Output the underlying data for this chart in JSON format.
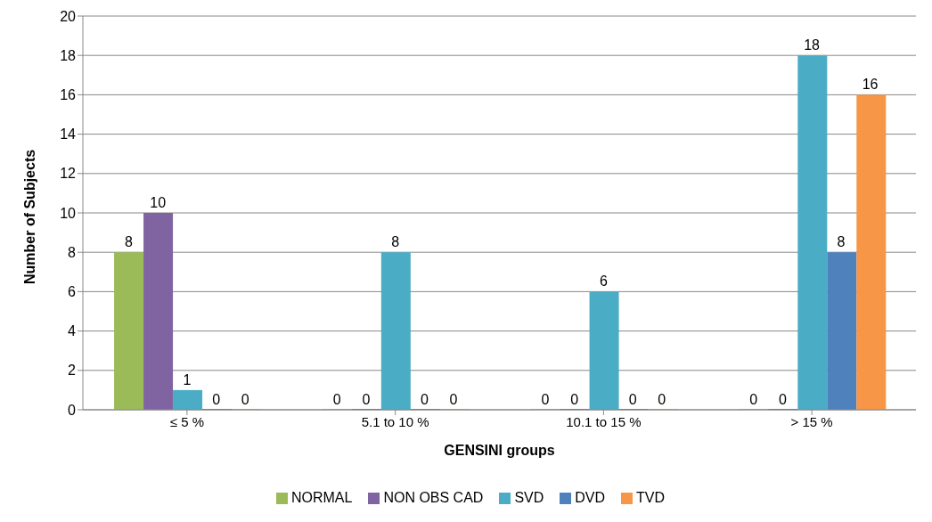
{
  "chart_data": {
    "type": "bar",
    "xlabel": "GENSINI groups",
    "ylabel": "Number of Subjects",
    "categories": [
      "≤ 5 %",
      "5.1 to 10 %",
      "10.1 to 15 %",
      "> 15 %"
    ],
    "series": [
      {
        "name": "NORMAL",
        "color": "#9bbb59",
        "values": [
          8,
          0,
          0,
          0
        ]
      },
      {
        "name": "NON OBS CAD",
        "color": "#8064a2",
        "values": [
          10,
          0,
          0,
          0
        ]
      },
      {
        "name": "SVD",
        "color": "#4bacc6",
        "values": [
          1,
          8,
          6,
          18
        ]
      },
      {
        "name": "DVD",
        "color": "#4f81bd",
        "values": [
          0,
          0,
          0,
          8
        ]
      },
      {
        "name": "TVD",
        "color": "#f79646",
        "values": [
          0,
          0,
          0,
          16
        ]
      }
    ],
    "ylim": [
      0,
      20
    ],
    "yticks": [
      0,
      2,
      4,
      6,
      8,
      10,
      12,
      14,
      16,
      18,
      20
    ],
    "grid": "y",
    "legend": "bottom",
    "data_labels": true
  }
}
